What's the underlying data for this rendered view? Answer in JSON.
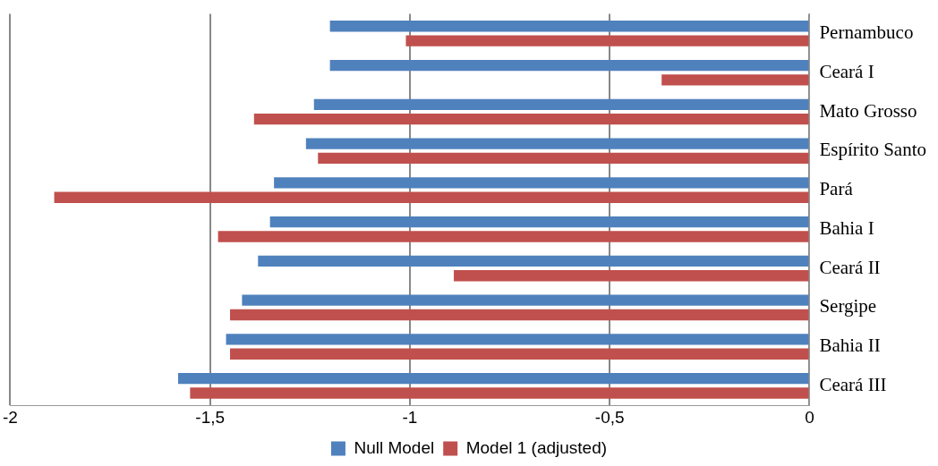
{
  "chart_data": {
    "type": "bar",
    "orientation": "horizontal",
    "categories": [
      "Pernambuco",
      "Ceará I",
      "Mato Grosso",
      "Espírito Santo",
      "Pará",
      "Bahia I",
      "Ceará II",
      "Sergipe",
      "Bahia II",
      "Ceará III"
    ],
    "series": [
      {
        "name": "Null Model",
        "color": "#4f81bd",
        "values": [
          -1.2,
          -1.2,
          -1.24,
          -1.26,
          -1.34,
          -1.35,
          -1.38,
          -1.42,
          -1.46,
          -1.58
        ]
      },
      {
        "name": "Model 1 (adjusted)",
        "color": "#c0504d",
        "values": [
          -1.01,
          -0.37,
          -1.39,
          -1.23,
          -1.89,
          -1.48,
          -0.89,
          -1.45,
          -1.45,
          -1.55
        ]
      }
    ],
    "xlim": [
      -2,
      0
    ],
    "xticks": [
      -2,
      {
        "value": -1.5,
        "label": "-1,5"
      },
      -1,
      {
        "value": -0.5,
        "label": "-0,5"
      },
      0
    ],
    "grid": "x",
    "legend": "bottom"
  }
}
